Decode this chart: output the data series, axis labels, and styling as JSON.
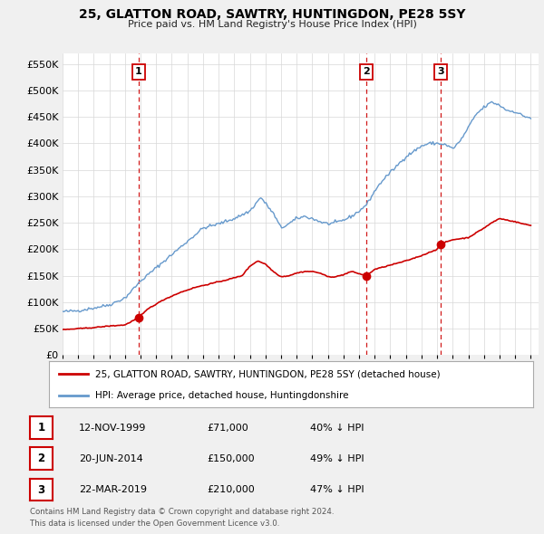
{
  "title": "25, GLATTON ROAD, SAWTRY, HUNTINGDON, PE28 5SY",
  "subtitle": "Price paid vs. HM Land Registry's House Price Index (HPI)",
  "red_label": "25, GLATTON ROAD, SAWTRY, HUNTINGDON, PE28 5SY (detached house)",
  "blue_label": "HPI: Average price, detached house, Huntingdonshire",
  "footer1": "Contains HM Land Registry data © Crown copyright and database right 2024.",
  "footer2": "This data is licensed under the Open Government Licence v3.0.",
  "ylim": [
    0,
    570000
  ],
  "yticks": [
    0,
    50000,
    100000,
    150000,
    200000,
    250000,
    300000,
    350000,
    400000,
    450000,
    500000,
    550000
  ],
  "xlim_start": 1995,
  "xlim_end": 2025.5,
  "background_color": "#f0f0f0",
  "plot_bg": "#ffffff",
  "red_color": "#cc0000",
  "blue_color": "#6699cc",
  "dashed_color": "#cc0000",
  "tx1_x": 1999.88,
  "tx2_x": 2014.46,
  "tx3_x": 2019.21,
  "tx1_y_red": 71000,
  "tx2_y_red": 150000,
  "tx3_y_red": 210000,
  "hpi_anchors_x": [
    1995.0,
    1996.0,
    1997.0,
    1998.0,
    1999.0,
    2000.0,
    2001.0,
    2002.0,
    2003.0,
    2004.0,
    2005.0,
    2006.0,
    2007.0,
    2007.7,
    2008.5,
    2009.0,
    2009.5,
    2010.0,
    2010.5,
    2011.0,
    2011.5,
    2012.0,
    2012.5,
    2013.0,
    2013.5,
    2014.0,
    2014.5,
    2015.0,
    2015.5,
    2016.0,
    2016.5,
    2017.0,
    2017.5,
    2018.0,
    2018.5,
    2019.0,
    2019.5,
    2020.0,
    2020.5,
    2021.0,
    2021.5,
    2022.0,
    2022.5,
    2023.0,
    2023.5,
    2024.0,
    2024.5,
    2025.0
  ],
  "hpi_anchors_y": [
    82000,
    84000,
    89000,
    95000,
    108000,
    140000,
    165000,
    190000,
    215000,
    240000,
    248000,
    258000,
    272000,
    298000,
    268000,
    240000,
    248000,
    258000,
    262000,
    258000,
    252000,
    248000,
    250000,
    255000,
    262000,
    272000,
    285000,
    310000,
    330000,
    345000,
    360000,
    375000,
    385000,
    395000,
    400000,
    400000,
    398000,
    390000,
    405000,
    430000,
    455000,
    468000,
    478000,
    472000,
    462000,
    460000,
    452000,
    448000
  ],
  "red_anchors_x": [
    1995.0,
    1996.0,
    1997.0,
    1998.0,
    1999.0,
    1999.88,
    2000.5,
    2001.5,
    2002.5,
    2003.5,
    2004.5,
    2005.5,
    2006.5,
    2007.0,
    2007.5,
    2008.0,
    2008.5,
    2009.0,
    2009.5,
    2010.0,
    2010.5,
    2011.0,
    2011.5,
    2012.0,
    2012.5,
    2013.0,
    2013.5,
    2014.46,
    2015.0,
    2016.0,
    2017.0,
    2018.0,
    2019.0,
    2019.21,
    2020.0,
    2021.0,
    2022.0,
    2022.5,
    2023.0,
    2023.5,
    2024.0,
    2024.5,
    2025.0
  ],
  "red_anchors_y": [
    48000,
    50000,
    52000,
    55000,
    57000,
    71000,
    88000,
    105000,
    118000,
    128000,
    135000,
    142000,
    150000,
    168000,
    178000,
    172000,
    158000,
    148000,
    150000,
    155000,
    158000,
    158000,
    155000,
    148000,
    148000,
    152000,
    158000,
    150000,
    162000,
    170000,
    178000,
    188000,
    200000,
    210000,
    218000,
    222000,
    240000,
    250000,
    258000,
    255000,
    252000,
    248000,
    245000
  ],
  "table_rows": [
    [
      1,
      "12-NOV-1999",
      "£71,000",
      "40% ↓ HPI"
    ],
    [
      2,
      "20-JUN-2014",
      "£150,000",
      "49% ↓ HPI"
    ],
    [
      3,
      "22-MAR-2019",
      "£210,000",
      "47% ↓ HPI"
    ]
  ]
}
